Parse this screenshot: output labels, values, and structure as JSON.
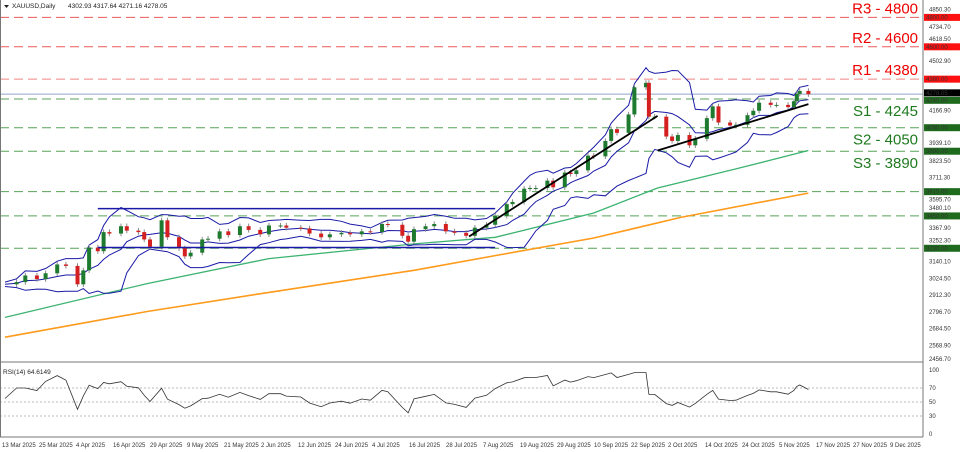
{
  "header": {
    "symbol": "XAUUSD,Daily",
    "ohlc": "4302.93 4317.64 4271.16 4278.05"
  },
  "rsi_label": "RSI(14) 64.6149",
  "colors": {
    "bull": "#1e7a2e",
    "bear": "#d42020",
    "bands": "#1a1aa6",
    "ma100": "#3cb371",
    "ma200": "#ff9a1a",
    "resistance": "#e83030",
    "support": "#2e8b2e",
    "trend": "#000000",
    "current": "#8fa8c8"
  },
  "chart_data": {
    "type": "candlestick",
    "title": "",
    "ylim": [
      2456.7,
      4850.3
    ],
    "y_ticks": [
      "4850.30",
      "4734.70",
      "4618.50",
      "4502.90",
      "4166.90",
      "3939.10",
      "3823.50",
      "3711.30",
      "3595.70",
      "3480.10",
      "3367.90",
      "3252.30",
      "3140.10",
      "3024.50",
      "2912.30",
      "2796.70",
      "2684.50",
      "2568.90",
      "2456.70"
    ],
    "x_ticks": [
      "13 Mar 2025",
      "25 Mar 2025",
      "4 Apr 2025",
      "16 Apr 2025",
      "29 Apr 2025",
      "9 May 2025",
      "21 May 2025",
      "2 Jun 2025",
      "12 Jun 2025",
      "24 Jun 2025",
      "4 Jul 2025",
      "16 Jul 2025",
      "28 Jul 2025",
      "7 Aug 2025",
      "19 Aug 2025",
      "29 Aug 2025",
      "10 Sep 2025",
      "22 Sep 2025",
      "2 Oct 2025",
      "14 Oct 2025",
      "24 Oct 2025",
      "5 Nov 2025",
      "17 Nov 2025",
      "27 Nov 2025",
      "9 Dec 2025"
    ],
    "closes": [
      [
        "2025-03-13",
        2985
      ],
      [
        "2025-03-17",
        3000
      ],
      [
        "2025-03-20",
        3045
      ],
      [
        "2025-03-24",
        3020
      ],
      [
        "2025-03-27",
        3060
      ],
      [
        "2025-03-31",
        3120
      ],
      [
        "2025-04-03",
        3110
      ],
      [
        "2025-04-07",
        2985
      ],
      [
        "2025-04-09",
        3080
      ],
      [
        "2025-04-11",
        3235
      ],
      [
        "2025-04-14",
        3210
      ],
      [
        "2025-04-16",
        3340
      ],
      [
        "2025-04-18",
        3330
      ],
      [
        "2025-04-22",
        3380
      ],
      [
        "2025-04-24",
        3350
      ],
      [
        "2025-04-28",
        3340
      ],
      [
        "2025-04-30",
        3290
      ],
      [
        "2025-05-02",
        3240
      ],
      [
        "2025-05-06",
        3420
      ],
      [
        "2025-05-08",
        3305
      ],
      [
        "2025-05-12",
        3230
      ],
      [
        "2025-05-14",
        3175
      ],
      [
        "2025-05-16",
        3200
      ],
      [
        "2025-05-20",
        3290
      ],
      [
        "2025-05-22",
        3295
      ],
      [
        "2025-05-26",
        3345
      ],
      [
        "2025-05-29",
        3320
      ],
      [
        "2025-06-02",
        3380
      ],
      [
        "2025-06-05",
        3355
      ],
      [
        "2025-06-09",
        3325
      ],
      [
        "2025-06-12",
        3385
      ],
      [
        "2025-06-16",
        3385
      ],
      [
        "2025-06-18",
        3370
      ],
      [
        "2025-06-23",
        3365
      ],
      [
        "2025-06-26",
        3330
      ],
      [
        "2025-06-30",
        3305
      ],
      [
        "2025-07-03",
        3325
      ],
      [
        "2025-07-07",
        3335
      ],
      [
        "2025-07-10",
        3325
      ],
      [
        "2025-07-14",
        3345
      ],
      [
        "2025-07-17",
        3340
      ],
      [
        "2025-07-21",
        3395
      ],
      [
        "2025-07-23",
        3390
      ],
      [
        "2025-07-28",
        3315
      ],
      [
        "2025-07-30",
        3275
      ],
      [
        "2025-08-01",
        3360
      ],
      [
        "2025-08-05",
        3380
      ],
      [
        "2025-08-08",
        3395
      ],
      [
        "2025-08-12",
        3345
      ],
      [
        "2025-08-15",
        3335
      ],
      [
        "2025-08-19",
        3315
      ],
      [
        "2025-08-22",
        3370
      ],
      [
        "2025-08-26",
        3390
      ],
      [
        "2025-08-29",
        3450
      ],
      [
        "2025-09-02",
        3530
      ],
      [
        "2025-09-04",
        3545
      ],
      [
        "2025-09-08",
        3635
      ],
      [
        "2025-09-10",
        3640
      ],
      [
        "2025-09-12",
        3640
      ],
      [
        "2025-09-16",
        3690
      ],
      [
        "2025-09-18",
        3645
      ],
      [
        "2025-09-22",
        3745
      ],
      [
        "2025-09-24",
        3735
      ],
      [
        "2025-09-26",
        3760
      ],
      [
        "2025-09-30",
        3860
      ],
      [
        "2025-10-02",
        3855
      ],
      [
        "2025-10-06",
        3960
      ],
      [
        "2025-10-08",
        4040
      ],
      [
        "2025-10-10",
        4015
      ],
      [
        "2025-10-14",
        4140
      ],
      [
        "2025-10-16",
        4325
      ],
      [
        "2025-10-20",
        4355
      ],
      [
        "2025-10-21",
        4125
      ],
      [
        "2025-10-23",
        4125
      ],
      [
        "2025-10-27",
        3990
      ],
      [
        "2025-10-29",
        3960
      ],
      [
        "2025-10-31",
        4000
      ],
      [
        "2025-11-04",
        3930
      ],
      [
        "2025-11-06",
        3975
      ],
      [
        "2025-11-10",
        4115
      ],
      [
        "2025-11-12",
        4195
      ],
      [
        "2025-11-14",
        4085
      ],
      [
        "2025-11-18",
        4065
      ],
      [
        "2025-11-20",
        4070
      ],
      [
        "2025-11-24",
        4135
      ],
      [
        "2025-11-26",
        4165
      ],
      [
        "2025-11-28",
        4220
      ],
      [
        "2025-12-02",
        4205
      ],
      [
        "2025-12-04",
        4205
      ],
      [
        "2025-12-08",
        4190
      ],
      [
        "2025-12-10",
        4230
      ],
      [
        "2025-12-11",
        4280
      ],
      [
        "2025-12-12",
        4300
      ],
      [
        "2025-12-15",
        4278
      ]
    ],
    "ma100": [
      [
        "2025-03-13",
        2760
      ],
      [
        "2025-05-01",
        2990
      ],
      [
        "2025-06-12",
        3160
      ],
      [
        "2025-08-01",
        3260
      ],
      [
        "2025-08-29",
        3305
      ],
      [
        "2025-10-02",
        3470
      ],
      [
        "2025-10-24",
        3640
      ],
      [
        "2025-11-20",
        3770
      ],
      [
        "2025-12-15",
        3895
      ]
    ],
    "ma200": [
      [
        "2025-03-13",
        2625
      ],
      [
        "2025-05-01",
        2800
      ],
      [
        "2025-06-12",
        2930
      ],
      [
        "2025-08-01",
        3080
      ],
      [
        "2025-08-29",
        3180
      ],
      [
        "2025-10-02",
        3300
      ],
      [
        "2025-11-01",
        3440
      ],
      [
        "2025-12-15",
        3605
      ]
    ],
    "channel": {
      "from": "2025-04-14",
      "to": "2025-08-29",
      "top": 3500,
      "bottom": 3235
    },
    "trendlines": [
      {
        "from": [
          "2025-08-20",
          3310
        ],
        "to": [
          "2025-10-24",
          4130
        ]
      },
      {
        "from": [
          "2025-10-24",
          3895
        ],
        "to": [
          "2025-12-15",
          4210
        ]
      }
    ],
    "levels": [
      {
        "label": "R3 - 4800",
        "value": 4800,
        "tag": "4800.00",
        "kind": "resistance"
      },
      {
        "label": "R2 - 4600",
        "value": 4600,
        "tag": "4600.00",
        "kind": "resistance"
      },
      {
        "label": "R1 - 4380",
        "value": 4380,
        "tag": "4380.00",
        "kind": "resistance"
      },
      {
        "label": "S1 - 4245",
        "value": 4245,
        "tag": "4245.00",
        "kind": "support"
      },
      {
        "label": "S2 - 4050",
        "value": 4050,
        "tag": "4050.00",
        "kind": "support"
      },
      {
        "label": "S3 - 3890",
        "value": 3890,
        "tag": "3890.00",
        "kind": "support"
      },
      {
        "label": "",
        "value": 3615,
        "tag": "3615.00",
        "kind": "support"
      },
      {
        "label": "",
        "value": 3450,
        "tag": "3450.00",
        "kind": "support"
      },
      {
        "label": "",
        "value": 3230,
        "tag": "3230.00",
        "kind": "support"
      }
    ],
    "current": {
      "value": 4278.05,
      "tag": "4278.05"
    },
    "rsi": {
      "ylim": [
        0,
        100
      ],
      "levels": [
        70,
        50,
        30
      ],
      "ticks": [
        "100",
        "70",
        "50",
        "30",
        "0"
      ]
    }
  }
}
